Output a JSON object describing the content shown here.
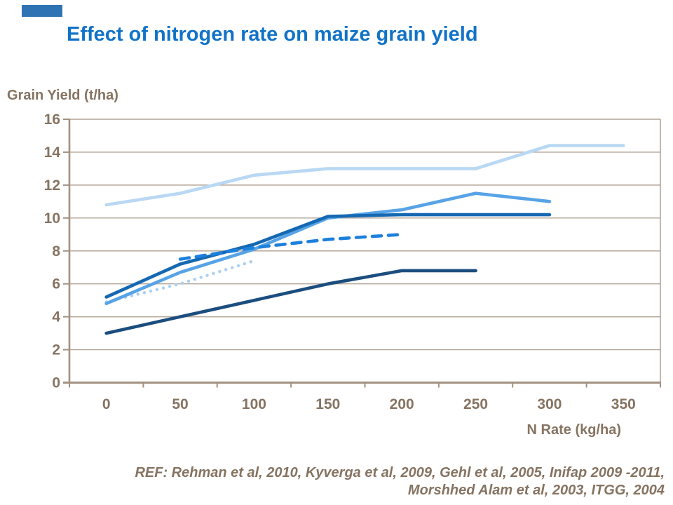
{
  "slide": {
    "title": "Effect of nitrogen rate on maize grain yield",
    "reference_line1": "REF: Rehman et al, 2010, Kyverga et al, 2009, Gehl et al, 2005, Inifap 2009 -2011,",
    "reference_line2": "Morshhed Alam et al, 2003, ITGG, 2004"
  },
  "colors": {
    "title_blue": "#1173C8",
    "accent_bar": "#2E74B5",
    "axis_text_brown": "#867361",
    "gridline": "#B3A496",
    "axis_line": "#A39181",
    "series_pale_blue": "#B9D8F4",
    "series_sky_blue": "#57A3E6",
    "series_dark_blue": "#1568B2",
    "series_dotted_pale": "#ABCFF0",
    "series_navy": "#1B4E7E",
    "series_dashed_blue": "#1D80DC"
  },
  "chart_data": {
    "type": "line",
    "title": "Effect of nitrogen rate on maize grain yield",
    "ylabel": "Grain Yield (t/ha)",
    "xlabel": "N Rate (kg/ha)",
    "x": [
      0,
      50,
      100,
      150,
      200,
      250,
      300,
      350
    ],
    "xticks": [
      "0",
      "50",
      "100",
      "150",
      "200",
      "250",
      "300",
      "350"
    ],
    "yticks": [
      0,
      2,
      4,
      6,
      8,
      10,
      12,
      14,
      16
    ],
    "ylim": [
      0,
      16
    ],
    "grid": "horizontal",
    "legend": "none",
    "series": [
      {
        "name": "series-1-pale-blue",
        "style": "solid",
        "color": "#B9D8F4",
        "values": [
          10.8,
          11.5,
          12.6,
          13.0,
          13.0,
          13.0,
          14.4,
          14.4
        ]
      },
      {
        "name": "series-2-dotted-pale",
        "style": "dotted",
        "color": "#ABCFF0",
        "values": [
          4.9,
          6.0,
          7.4,
          null,
          null,
          null,
          null,
          null
        ]
      },
      {
        "name": "series-3-sky-blue",
        "style": "solid",
        "color": "#57A3E6",
        "values": [
          4.8,
          6.7,
          8.1,
          10.0,
          10.5,
          11.5,
          11.0,
          null
        ]
      },
      {
        "name": "series-4-dark-blue",
        "style": "solid",
        "color": "#1568B2",
        "values": [
          5.2,
          7.2,
          8.4,
          10.1,
          10.2,
          10.2,
          10.2,
          null
        ]
      },
      {
        "name": "series-5-navy",
        "style": "solid",
        "color": "#1B4E7E",
        "values": [
          3.0,
          4.0,
          5.0,
          6.0,
          6.8,
          6.8,
          null,
          null
        ]
      },
      {
        "name": "series-6-dashed-blue",
        "style": "dashed",
        "color": "#1D80DC",
        "values": [
          null,
          7.5,
          8.2,
          8.7,
          9.0,
          null,
          null,
          null
        ]
      }
    ]
  }
}
